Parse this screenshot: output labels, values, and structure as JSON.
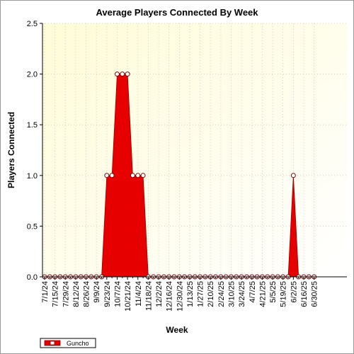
{
  "chart_data": {
    "type": "area",
    "title": "Average Players Connected By Week",
    "xlabel": "Week",
    "ylabel": "Players Connected",
    "ylim": [
      0,
      2.5
    ],
    "yticks": [
      "0.0",
      "0.5",
      "1.0",
      "1.5",
      "2.0",
      "2.5"
    ],
    "x_tick_labels": [
      "7/1/24",
      "7/15/24",
      "7/29/24",
      "8/12/24",
      "8/26/24",
      "9/9/24",
      "9/23/24",
      "10/7/24",
      "10/21/24",
      "11/4/24",
      "11/18/24",
      "12/2/24",
      "12/16/24",
      "12/30/24",
      "1/13/25",
      "1/27/25",
      "2/10/25",
      "2/24/25",
      "3/10/25",
      "3/24/25",
      "4/7/25",
      "4/21/25",
      "5/5/25",
      "5/19/25",
      "6/2/25",
      "6/16/25",
      "6/30/25"
    ],
    "x": [
      "7/1/24",
      "7/8/24",
      "7/15/24",
      "7/22/24",
      "7/29/24",
      "8/5/24",
      "8/12/24",
      "8/19/24",
      "8/26/24",
      "9/2/24",
      "9/9/24",
      "9/16/24",
      "9/23/24",
      "9/30/24",
      "10/7/24",
      "10/14/24",
      "10/21/24",
      "10/28/24",
      "11/4/24",
      "11/11/24",
      "11/18/24",
      "11/25/24",
      "12/2/24",
      "12/9/24",
      "12/16/24",
      "12/23/24",
      "12/30/24",
      "1/6/25",
      "1/13/25",
      "1/20/25",
      "1/27/25",
      "2/3/25",
      "2/10/25",
      "2/17/25",
      "2/24/25",
      "3/3/25",
      "3/10/25",
      "3/17/25",
      "3/24/25",
      "3/31/25",
      "4/7/25",
      "4/14/25",
      "4/21/25",
      "4/28/25",
      "5/5/25",
      "5/12/25",
      "5/19/25",
      "5/26/25",
      "6/2/25",
      "6/9/25",
      "6/16/25",
      "6/23/25",
      "6/30/25"
    ],
    "series": [
      {
        "name": "Guncho",
        "color": "#e60000",
        "values": [
          0,
          0,
          0,
          0,
          0,
          0,
          0,
          0,
          0,
          0,
          0,
          0,
          1,
          1,
          2,
          2,
          2,
          1,
          1,
          1,
          0,
          0,
          0,
          0,
          0,
          0,
          0,
          0,
          0,
          0,
          0,
          0,
          0,
          0,
          0,
          0,
          0,
          0,
          0,
          0,
          0,
          0,
          0,
          0,
          0,
          0,
          0,
          0,
          1,
          0,
          0,
          0,
          0
        ]
      }
    ],
    "grid": true,
    "legend": "bottom-left",
    "colors": {
      "plot_background_top": "#fffcd8",
      "plot_background_bottom": "#ffffff",
      "area_fill": "#e60000",
      "marker_fill": "#ffffff",
      "marker_stroke": "#7a0000"
    }
  }
}
